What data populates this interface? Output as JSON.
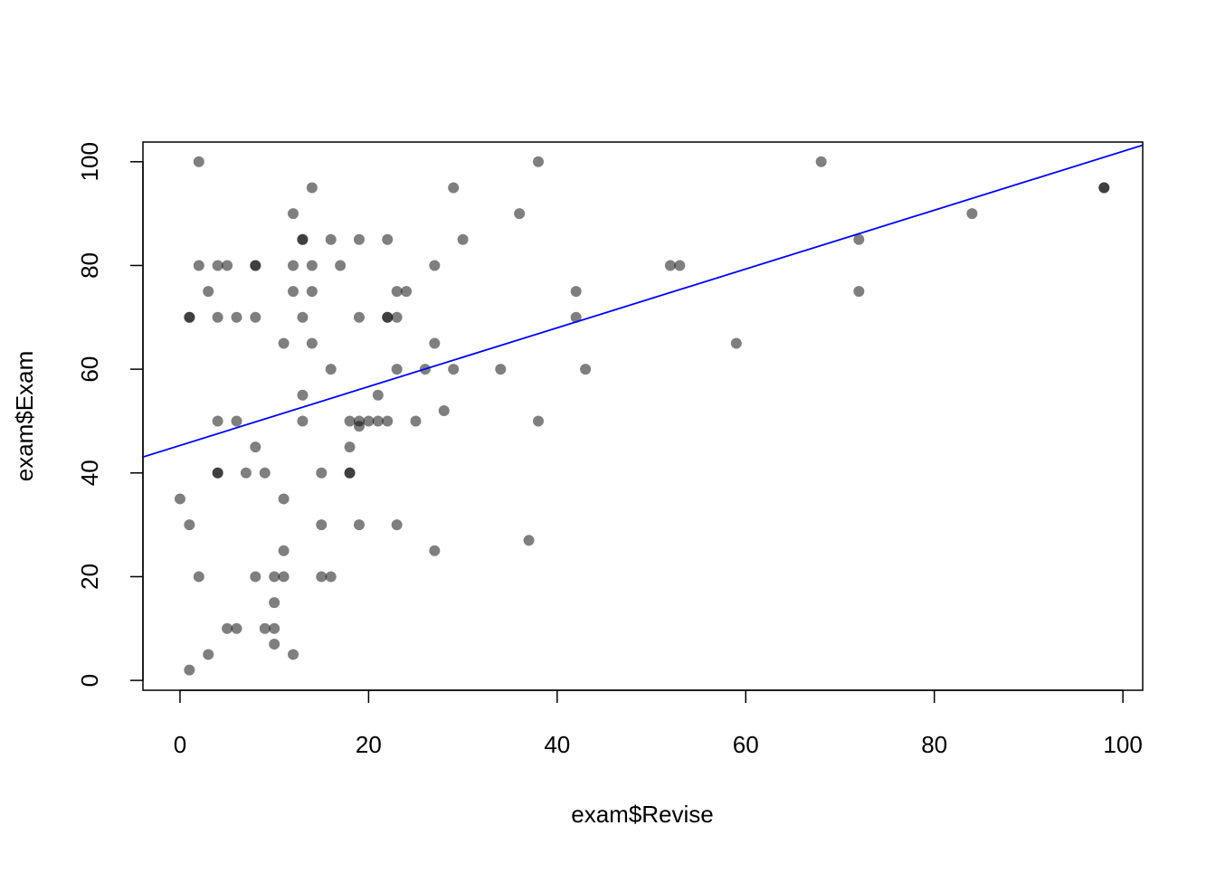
{
  "chart_data": {
    "type": "scatter",
    "x_label": "exam$Revise",
    "y_label": "exam$Exam",
    "x": [
      0,
      1,
      1,
      1,
      1,
      2,
      2,
      2,
      3,
      3,
      4,
      4,
      4,
      4,
      4,
      5,
      5,
      6,
      6,
      6,
      7,
      8,
      8,
      8,
      8,
      8,
      9,
      9,
      10,
      10,
      10,
      10,
      11,
      11,
      11,
      11,
      12,
      12,
      12,
      12,
      13,
      13,
      13,
      13,
      13,
      14,
      14,
      14,
      14,
      15,
      15,
      15,
      16,
      16,
      16,
      17,
      18,
      18,
      18,
      18,
      19,
      19,
      19,
      19,
      19,
      20,
      21,
      21,
      22,
      22,
      22,
      22,
      23,
      23,
      23,
      23,
      24,
      25,
      26,
      27,
      27,
      27,
      28,
      29,
      29,
      30,
      34,
      36,
      37,
      38,
      38,
      42,
      42,
      43,
      52,
      53,
      59,
      68,
      72,
      72,
      84,
      98,
      98
    ],
    "values": [
      35,
      30,
      70,
      70,
      2,
      100,
      80,
      20,
      75,
      5,
      80,
      70,
      50,
      40,
      40,
      80,
      10,
      70,
      50,
      10,
      40,
      80,
      80,
      70,
      45,
      20,
      40,
      10,
      20,
      15,
      10,
      7,
      65,
      35,
      25,
      20,
      90,
      80,
      75,
      5,
      85,
      85,
      70,
      55,
      50,
      95,
      80,
      75,
      65,
      40,
      30,
      20,
      85,
      60,
      20,
      80,
      50,
      45,
      40,
      40,
      85,
      70,
      50,
      49,
      30,
      50,
      55,
      50,
      85,
      70,
      70,
      50,
      75,
      70,
      60,
      30,
      75,
      50,
      60,
      80,
      65,
      25,
      52,
      95,
      60,
      85,
      60,
      90,
      27,
      100,
      50,
      75,
      70,
      60,
      80,
      80,
      65,
      100,
      85,
      75,
      90,
      95,
      95
    ],
    "color": "rgba(0,0,0,0.5)",
    "regression": {
      "intercept": 45.3,
      "slope": 0.567,
      "color": "#0000ff"
    },
    "xlim": [
      -3.93,
      102.1
    ],
    "ylim": [
      -1.9,
      103.8
    ],
    "xticks": [
      0,
      20,
      40,
      60,
      80,
      100
    ],
    "yticks": [
      0,
      20,
      40,
      60,
      80,
      100
    ]
  }
}
